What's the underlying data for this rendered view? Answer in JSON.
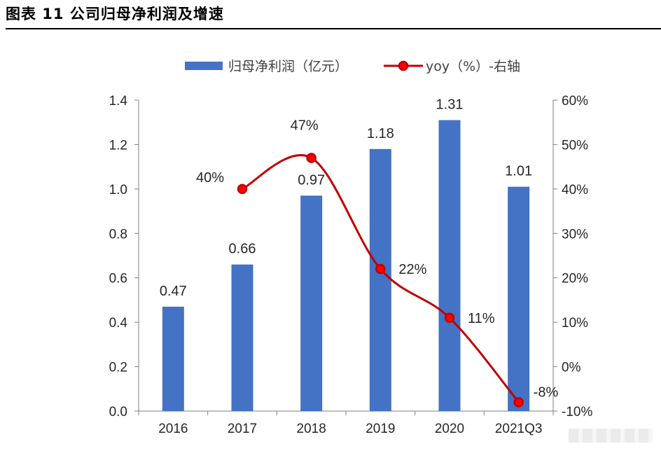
{
  "figure": {
    "title": "图表 11 公司归母净利润及增速"
  },
  "chart_data": {
    "type": "bar",
    "categories": [
      "2016",
      "2017",
      "2018",
      "2019",
      "2020",
      "2021Q3"
    ],
    "series": [
      {
        "name": "归母净利润（亿元）",
        "type": "bar",
        "axis": "left",
        "color": "#4472C4",
        "values": [
          0.47,
          0.66,
          0.97,
          1.18,
          1.31,
          1.01
        ],
        "labels": [
          "0.47",
          "0.66",
          "0.97",
          "1.18",
          "1.31",
          "1.01"
        ]
      },
      {
        "name": "yoy（%）-右轴",
        "type": "line",
        "axis": "right",
        "color": "#C00000",
        "marker_fill": "#FF0000",
        "values": [
          null,
          40,
          47,
          22,
          11,
          -8
        ],
        "labels": [
          "",
          "40%",
          "47%",
          "22%",
          "11%",
          "-8%"
        ]
      }
    ],
    "y_left": {
      "ylim": [
        0,
        1.4
      ],
      "ticks": [
        "0.0",
        "0.2",
        "0.4",
        "0.6",
        "0.8",
        "1.0",
        "1.2",
        "1.4"
      ]
    },
    "y_right": {
      "ylim": [
        -10,
        60
      ],
      "ticks": [
        "-10%",
        "0%",
        "10%",
        "20%",
        "30%",
        "40%",
        "50%",
        "60%"
      ]
    },
    "legend": {
      "position": "top-center"
    },
    "grid": false
  }
}
